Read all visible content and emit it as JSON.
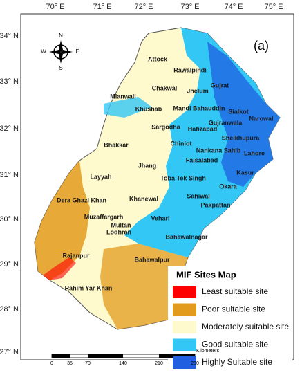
{
  "coordinates": {
    "longitude": [
      "70° E",
      "71° E",
      "72° E",
      "73° E",
      "74° E",
      "75° E"
    ],
    "latitude": [
      "34° N",
      "33° N",
      "32° N",
      "31° N",
      "30° N",
      "29° N",
      "28° N",
      "27° N"
    ]
  },
  "panel_label": "(a)",
  "compass": {
    "north": "N",
    "south": "S",
    "east": "E",
    "west": "W"
  },
  "districts": [
    "Attock",
    "Rawalpindi",
    "Chakwal",
    "Jhelum",
    "Gujrat",
    "Mianwali",
    "Khushab",
    "Mandi Bahauddin",
    "Sialkot",
    "Narowal",
    "Sargodha",
    "Gujranwala",
    "Hafizabad",
    "Sheikhupura",
    "Chiniot",
    "Nankana Sahib",
    "Lahore",
    "Bhakkar",
    "Faisalabad",
    "Jhang",
    "Toba Tek Singh",
    "Kasur",
    "Okara",
    "Layyah",
    "Khanewal",
    "Sahiwal",
    "Pakpattan",
    "Dera Ghazi Khan",
    "Muzaffargarh",
    "Multan",
    "Vehari",
    "Lodhran",
    "Bahawalnagar",
    "Rajanpur",
    "Bahawalpur",
    "Rahim Yar Khan"
  ],
  "legend": {
    "title": "MIF Sites Map",
    "items": [
      {
        "label": "Least suitable site",
        "color": "#ff0000"
      },
      {
        "label": "Poor suitable site",
        "color": "#e39b1e"
      },
      {
        "label": "Moderately suitable site",
        "color": "#fffacd"
      },
      {
        "label": "Good suitable site",
        "color": "#33c7f5"
      },
      {
        "label": "Highly Suitable site",
        "color": "#1f5fe0"
      }
    ]
  },
  "scale_bar": {
    "unit": "Kilometers",
    "ticks": [
      "0",
      "35",
      "70",
      "140",
      "210",
      "280"
    ]
  }
}
